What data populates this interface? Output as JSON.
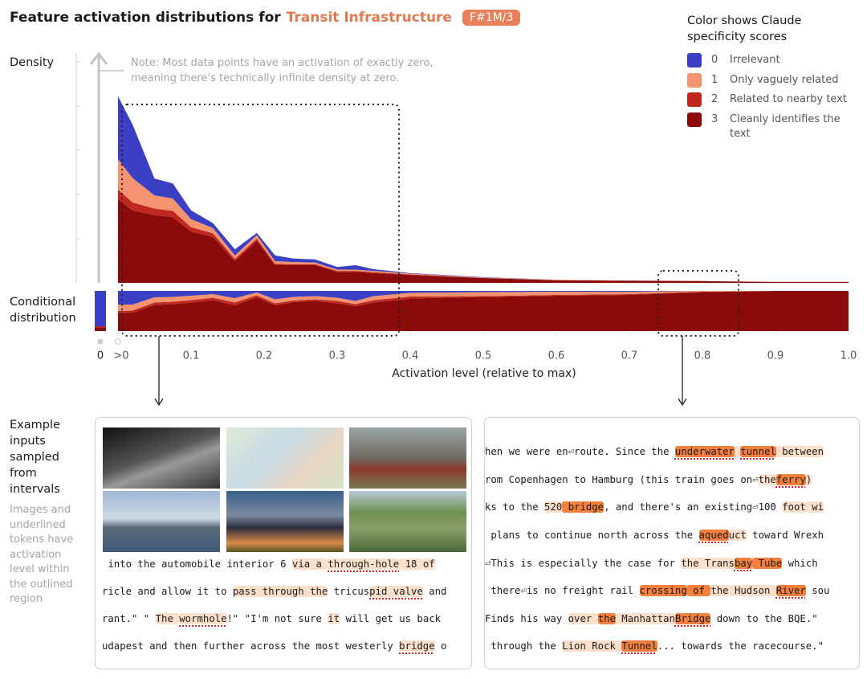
{
  "header": {
    "title": "Feature activation distributions for",
    "feature": "Transit Infrastructure",
    "badge": "F#1M/3"
  },
  "legend": {
    "title": "Color shows Claude specificity scores"
  },
  "chart_data": [
    {
      "type": "stacked-area",
      "y_label": "Density",
      "note": "Note: Most data points have an activation of exactly zero, meaning there's technically infinite density at zero.",
      "x": [
        0.0,
        0.02,
        0.05,
        0.075,
        0.1,
        0.13,
        0.16,
        0.19,
        0.215,
        0.24,
        0.27,
        0.3,
        0.325,
        0.35,
        0.4,
        0.5,
        0.6,
        0.7,
        0.8,
        0.9,
        1.0
      ],
      "xlim": [
        0,
        1
      ],
      "ylim": [
        0,
        5.2
      ],
      "yticks": [
        1,
        2,
        3,
        4,
        5
      ],
      "series": [
        {
          "name": "Irrelevant",
          "score": 0,
          "color": "#3b3fc4",
          "values": [
            1.42,
            1.21,
            0.38,
            0.34,
            0.2,
            0.11,
            0.14,
            0.05,
            0.13,
            0.08,
            0.07,
            0.06,
            0.1,
            0.04,
            0.01,
            0.01,
            0,
            0,
            0,
            0,
            0
          ]
        },
        {
          "name": "Only vaguely related",
          "score": 1,
          "color": "#f4936f",
          "values": [
            0.69,
            0.55,
            0.3,
            0.28,
            0.18,
            0.12,
            0.08,
            0.08,
            0.06,
            0.05,
            0.04,
            0.03,
            0.03,
            0.03,
            0.02,
            0.01,
            0.01,
            0,
            0,
            0,
            0
          ]
        },
        {
          "name": "Related to nearby text",
          "score": 2,
          "color": "#c0281f",
          "values": [
            0.22,
            0.18,
            0.15,
            0.14,
            0.1,
            0.08,
            0.05,
            0.05,
            0.03,
            0.02,
            0.02,
            0.02,
            0.02,
            0.02,
            0.01,
            0,
            0,
            0,
            0,
            0,
            0
          ]
        },
        {
          "name": "Cleanly identifies the text",
          "score": 3,
          "color": "#8b0a0a",
          "values": [
            1.89,
            1.64,
            1.53,
            1.49,
            1.16,
            1.04,
            0.49,
            0.95,
            0.4,
            0.4,
            0.4,
            0.25,
            0.25,
            0.22,
            0.18,
            0.11,
            0.06,
            0.05,
            0.04,
            0.02,
            0.02
          ]
        }
      ]
    },
    {
      "type": "stacked-share",
      "y_label": "Conditional distribution",
      "x_label": "Activation level (relative to max)",
      "zero_label": "0",
      "x": [
        0.0,
        0.02,
        0.05,
        0.075,
        0.1,
        0.13,
        0.16,
        0.19,
        0.215,
        0.24,
        0.27,
        0.3,
        0.325,
        0.35,
        0.4,
        0.5,
        0.6,
        0.7,
        0.8,
        0.9,
        1.0
      ],
      "xlim": [
        0,
        1
      ],
      "xticks": [
        {
          "value": 0,
          "label": ">0"
        },
        0.1,
        0.2,
        0.3,
        0.4,
        0.5,
        0.6,
        0.7,
        0.8,
        0.9,
        {
          "value": 1,
          "label": "1.0"
        }
      ],
      "ylim": [
        0,
        100
      ],
      "series": [
        {
          "color": "#3b3fc4",
          "zero_value": 88,
          "values": [
            34,
            34,
            16,
            15,
            12,
            8,
            18,
            4,
            21,
            15,
            13,
            17,
            25,
            13,
            5,
            3,
            2,
            2,
            0,
            0,
            0
          ]
        },
        {
          "color": "#f4936f",
          "zero_value": 0,
          "values": [
            16,
            15,
            13,
            12,
            11,
            9,
            11,
            7,
            10,
            9,
            8,
            8,
            8,
            10,
            9,
            10,
            8,
            6,
            2,
            0,
            0
          ]
        },
        {
          "color": "#c0281f",
          "zero_value": 4,
          "values": [
            5,
            5,
            6,
            6,
            6,
            6,
            7,
            5,
            5,
            4,
            4,
            6,
            5,
            6,
            5,
            2,
            2,
            2,
            1,
            0,
            0
          ]
        },
        {
          "color": "#8b0a0a",
          "zero_value": 8,
          "values": [
            45,
            46,
            65,
            67,
            71,
            77,
            64,
            84,
            64,
            72,
            75,
            69,
            62,
            71,
            81,
            85,
            88,
            90,
            97,
            100,
            100
          ]
        }
      ]
    }
  ],
  "examples": {
    "heading": "Example inputs sampled from intervals",
    "caption": "Images and underlined tokens have activation level within the outlined region",
    "left_lines": [
      [
        {
          "text": " into the automobile interior 6 "
        },
        {
          "text": "via a ",
          "hl": 1
        },
        {
          "text": "through-hole",
          "hl": 1,
          "ul": true
        },
        {
          "text": " 18 ",
          "hl": 1
        },
        {
          "text": "of",
          "hl": 1
        }
      ],
      [
        {
          "text": "ricle and allow it to "
        },
        {
          "text": "pass through the",
          "hl": 1
        },
        {
          "text": " tricus"
        },
        {
          "text": "pid valve",
          "hl": 1,
          "ul": true
        },
        {
          "text": " and"
        }
      ],
      [
        {
          "text": "rant.\" \" "
        },
        {
          "text": "The ",
          "hl": 1
        },
        {
          "text": "wormhole",
          "hl": 1,
          "ul": true
        },
        {
          "text": "!\" \"I'm not sure "
        },
        {
          "text": "it",
          "hl": 1
        },
        {
          "text": " will get us back"
        }
      ],
      [
        {
          "text": "udapest and then further across the most westerly "
        },
        {
          "text": "bridge",
          "hl": 1,
          "ul": true
        },
        {
          "text": " o"
        }
      ]
    ],
    "right_lines": [
      [
        {
          "text": "hen we were en⏎route. Since the "
        },
        {
          "text": "underwater",
          "hl": 2,
          "ul": true
        },
        {
          "text": " ",
          "hl": 1
        },
        {
          "text": "tunnel",
          "hl": 2,
          "ul": true
        },
        {
          "text": " between",
          "hl": 1
        }
      ],
      [
        {
          "text": "rom Copenhagen to Hamburg (this train goes on⏎"
        },
        {
          "text": "the",
          "hl": 1
        },
        {
          "text": "ferry",
          "hl": 2,
          "ul": true
        },
        {
          "text": ")",
          "hl": 1
        }
      ],
      [
        {
          "text": "ks to the "
        },
        {
          "text": "520",
          "hl": 1
        },
        {
          "text": " bridge",
          "hl": 2
        },
        {
          "text": ", and there's an existing⏎100 "
        },
        {
          "text": "foot",
          "hl": 1
        },
        {
          "text": " wi",
          "hl": 1
        }
      ],
      [
        {
          "text": " plans to continue north across the "
        },
        {
          "text": "aqued",
          "hl": 2,
          "ul": true
        },
        {
          "text": "uct",
          "hl": 1
        },
        {
          "text": " toward Wrexh"
        }
      ],
      [
        {
          "text": "⏎This is especially the case for "
        },
        {
          "text": "the Trans",
          "hl": 1
        },
        {
          "text": "bay",
          "hl": 2,
          "ul": true
        },
        {
          "text": " Tube",
          "hl": 2
        },
        {
          "text": " which"
        }
      ],
      [
        {
          "text": " there⏎is no freight rail "
        },
        {
          "text": "crossing",
          "hl": 2
        },
        {
          "text": " of ",
          "hl": 2
        },
        {
          "text": "the",
          "hl": 1
        },
        {
          "text": " Hudson ",
          "hl": 1
        },
        {
          "text": "River",
          "hl": 2,
          "ul": true
        },
        {
          "text": " sou"
        }
      ],
      [
        {
          "text": "Finds his way "
        },
        {
          "text": "over ",
          "hl": 1
        },
        {
          "text": "the",
          "hl": 2
        },
        {
          "text": " Manhattan",
          "hl": 1
        },
        {
          "text": "Bridge",
          "hl": 2,
          "ul": true
        },
        {
          "text": " down to the BQE.\""
        }
      ],
      [
        {
          "text": " through the "
        },
        {
          "text": "Lion Rock ",
          "hl": 1
        },
        {
          "text": "Tunnel",
          "hl": 2,
          "ul": true
        },
        {
          "text": "... towards the racecourse.\""
        }
      ]
    ]
  }
}
